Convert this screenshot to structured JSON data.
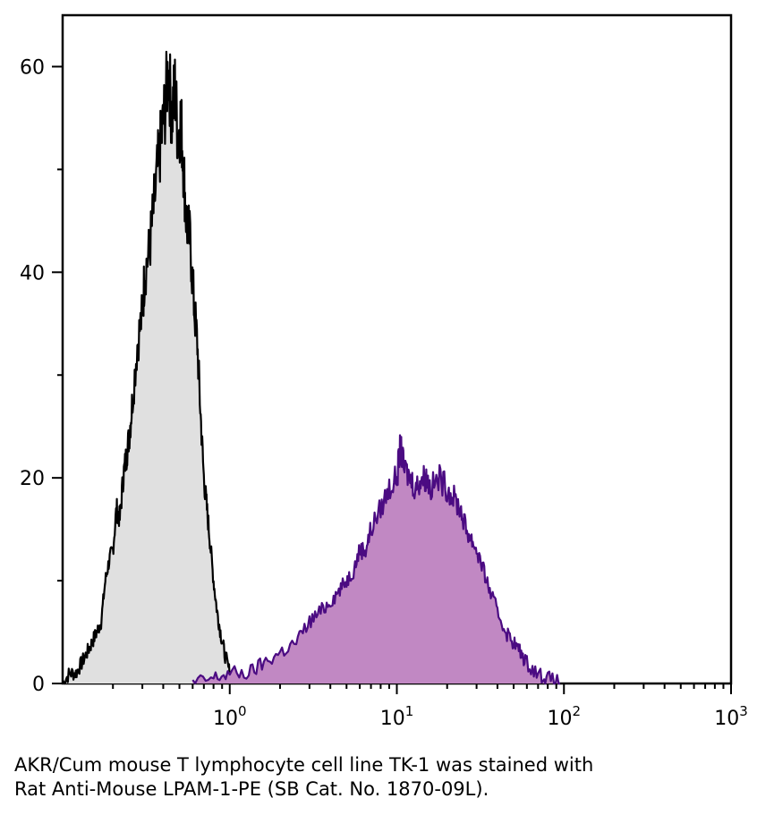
{
  "caption": {
    "line1": "AKR/Cum mouse T lymphocyte cell line TK-1 was stained with",
    "line2": "Rat Anti-Mouse LPAM-1-PE (SB Cat. No. 1870-09L)."
  },
  "chart_data": {
    "type": "area",
    "title": "",
    "xlabel": "",
    "ylabel": "",
    "xscale": "log",
    "xlim": [
      0.1,
      1000
    ],
    "ylim": [
      0,
      65
    ],
    "grid": false,
    "x_ticks": [
      {
        "base": "10",
        "exp": "0"
      },
      {
        "base": "10",
        "exp": "1"
      },
      {
        "base": "10",
        "exp": "2"
      },
      {
        "base": "10",
        "exp": "3"
      }
    ],
    "y_ticks": [
      "0",
      "20",
      "40",
      "60"
    ],
    "series": [
      {
        "fill": "#e0e0e0",
        "stroke": "#000000",
        "points": [
          [
            0.1,
            0
          ],
          [
            0.11,
            1
          ],
          [
            0.12,
            1
          ],
          [
            0.13,
            2
          ],
          [
            0.14,
            3
          ],
          [
            0.15,
            4
          ],
          [
            0.16,
            5
          ],
          [
            0.17,
            6
          ],
          [
            0.18,
            10
          ],
          [
            0.19,
            12
          ],
          [
            0.2,
            13
          ],
          [
            0.21,
            17
          ],
          [
            0.22,
            16
          ],
          [
            0.23,
            20
          ],
          [
            0.24,
            22
          ],
          [
            0.25,
            24
          ],
          [
            0.26,
            27
          ],
          [
            0.28,
            33
          ],
          [
            0.3,
            36
          ],
          [
            0.31,
            40
          ],
          [
            0.33,
            42
          ],
          [
            0.35,
            46
          ],
          [
            0.37,
            50
          ],
          [
            0.39,
            53
          ],
          [
            0.41,
            56
          ],
          [
            0.43,
            60
          ],
          [
            0.45,
            55
          ],
          [
            0.47,
            58
          ],
          [
            0.49,
            53
          ],
          [
            0.51,
            55
          ],
          [
            0.53,
            50
          ],
          [
            0.55,
            45
          ],
          [
            0.58,
            43
          ],
          [
            0.61,
            37
          ],
          [
            0.64,
            33
          ],
          [
            0.67,
            26
          ],
          [
            0.7,
            20
          ],
          [
            0.73,
            17
          ],
          [
            0.76,
            14
          ],
          [
            0.8,
            10
          ],
          [
            0.84,
            7
          ],
          [
            0.88,
            5
          ],
          [
            0.93,
            3
          ],
          [
            1.0,
            1
          ],
          [
            1.1,
            0
          ]
        ]
      },
      {
        "fill": "#c188c3",
        "stroke": "#4b0b82",
        "points": [
          [
            0.6,
            0
          ],
          [
            0.8,
            0.5
          ],
          [
            1.0,
            1
          ],
          [
            1.3,
            1
          ],
          [
            1.6,
            2
          ],
          [
            2.0,
            3
          ],
          [
            2.5,
            4
          ],
          [
            3.0,
            6
          ],
          [
            3.5,
            7
          ],
          [
            4.0,
            8
          ],
          [
            4.5,
            9
          ],
          [
            5.0,
            10
          ],
          [
            5.5,
            11
          ],
          [
            6.0,
            13
          ],
          [
            6.5,
            13
          ],
          [
            7.0,
            15
          ],
          [
            8.0,
            17
          ],
          [
            9.0,
            19
          ],
          [
            10.0,
            20
          ],
          [
            10.5,
            23
          ],
          [
            11.0,
            21
          ],
          [
            12.0,
            20
          ],
          [
            13.0,
            19
          ],
          [
            14.0,
            20
          ],
          [
            15.0,
            20
          ],
          [
            16.0,
            19
          ],
          [
            18.0,
            20
          ],
          [
            20.0,
            19
          ],
          [
            22.0,
            18
          ],
          [
            24.0,
            17
          ],
          [
            26.0,
            15
          ],
          [
            28.0,
            14
          ],
          [
            30.0,
            13
          ],
          [
            33.0,
            11
          ],
          [
            36.0,
            9
          ],
          [
            40.0,
            7
          ],
          [
            45.0,
            5
          ],
          [
            50.0,
            4
          ],
          [
            55.0,
            3
          ],
          [
            60.0,
            2
          ],
          [
            70.0,
            1
          ],
          [
            80.0,
            0.5
          ],
          [
            95.0,
            0
          ]
        ]
      }
    ]
  }
}
